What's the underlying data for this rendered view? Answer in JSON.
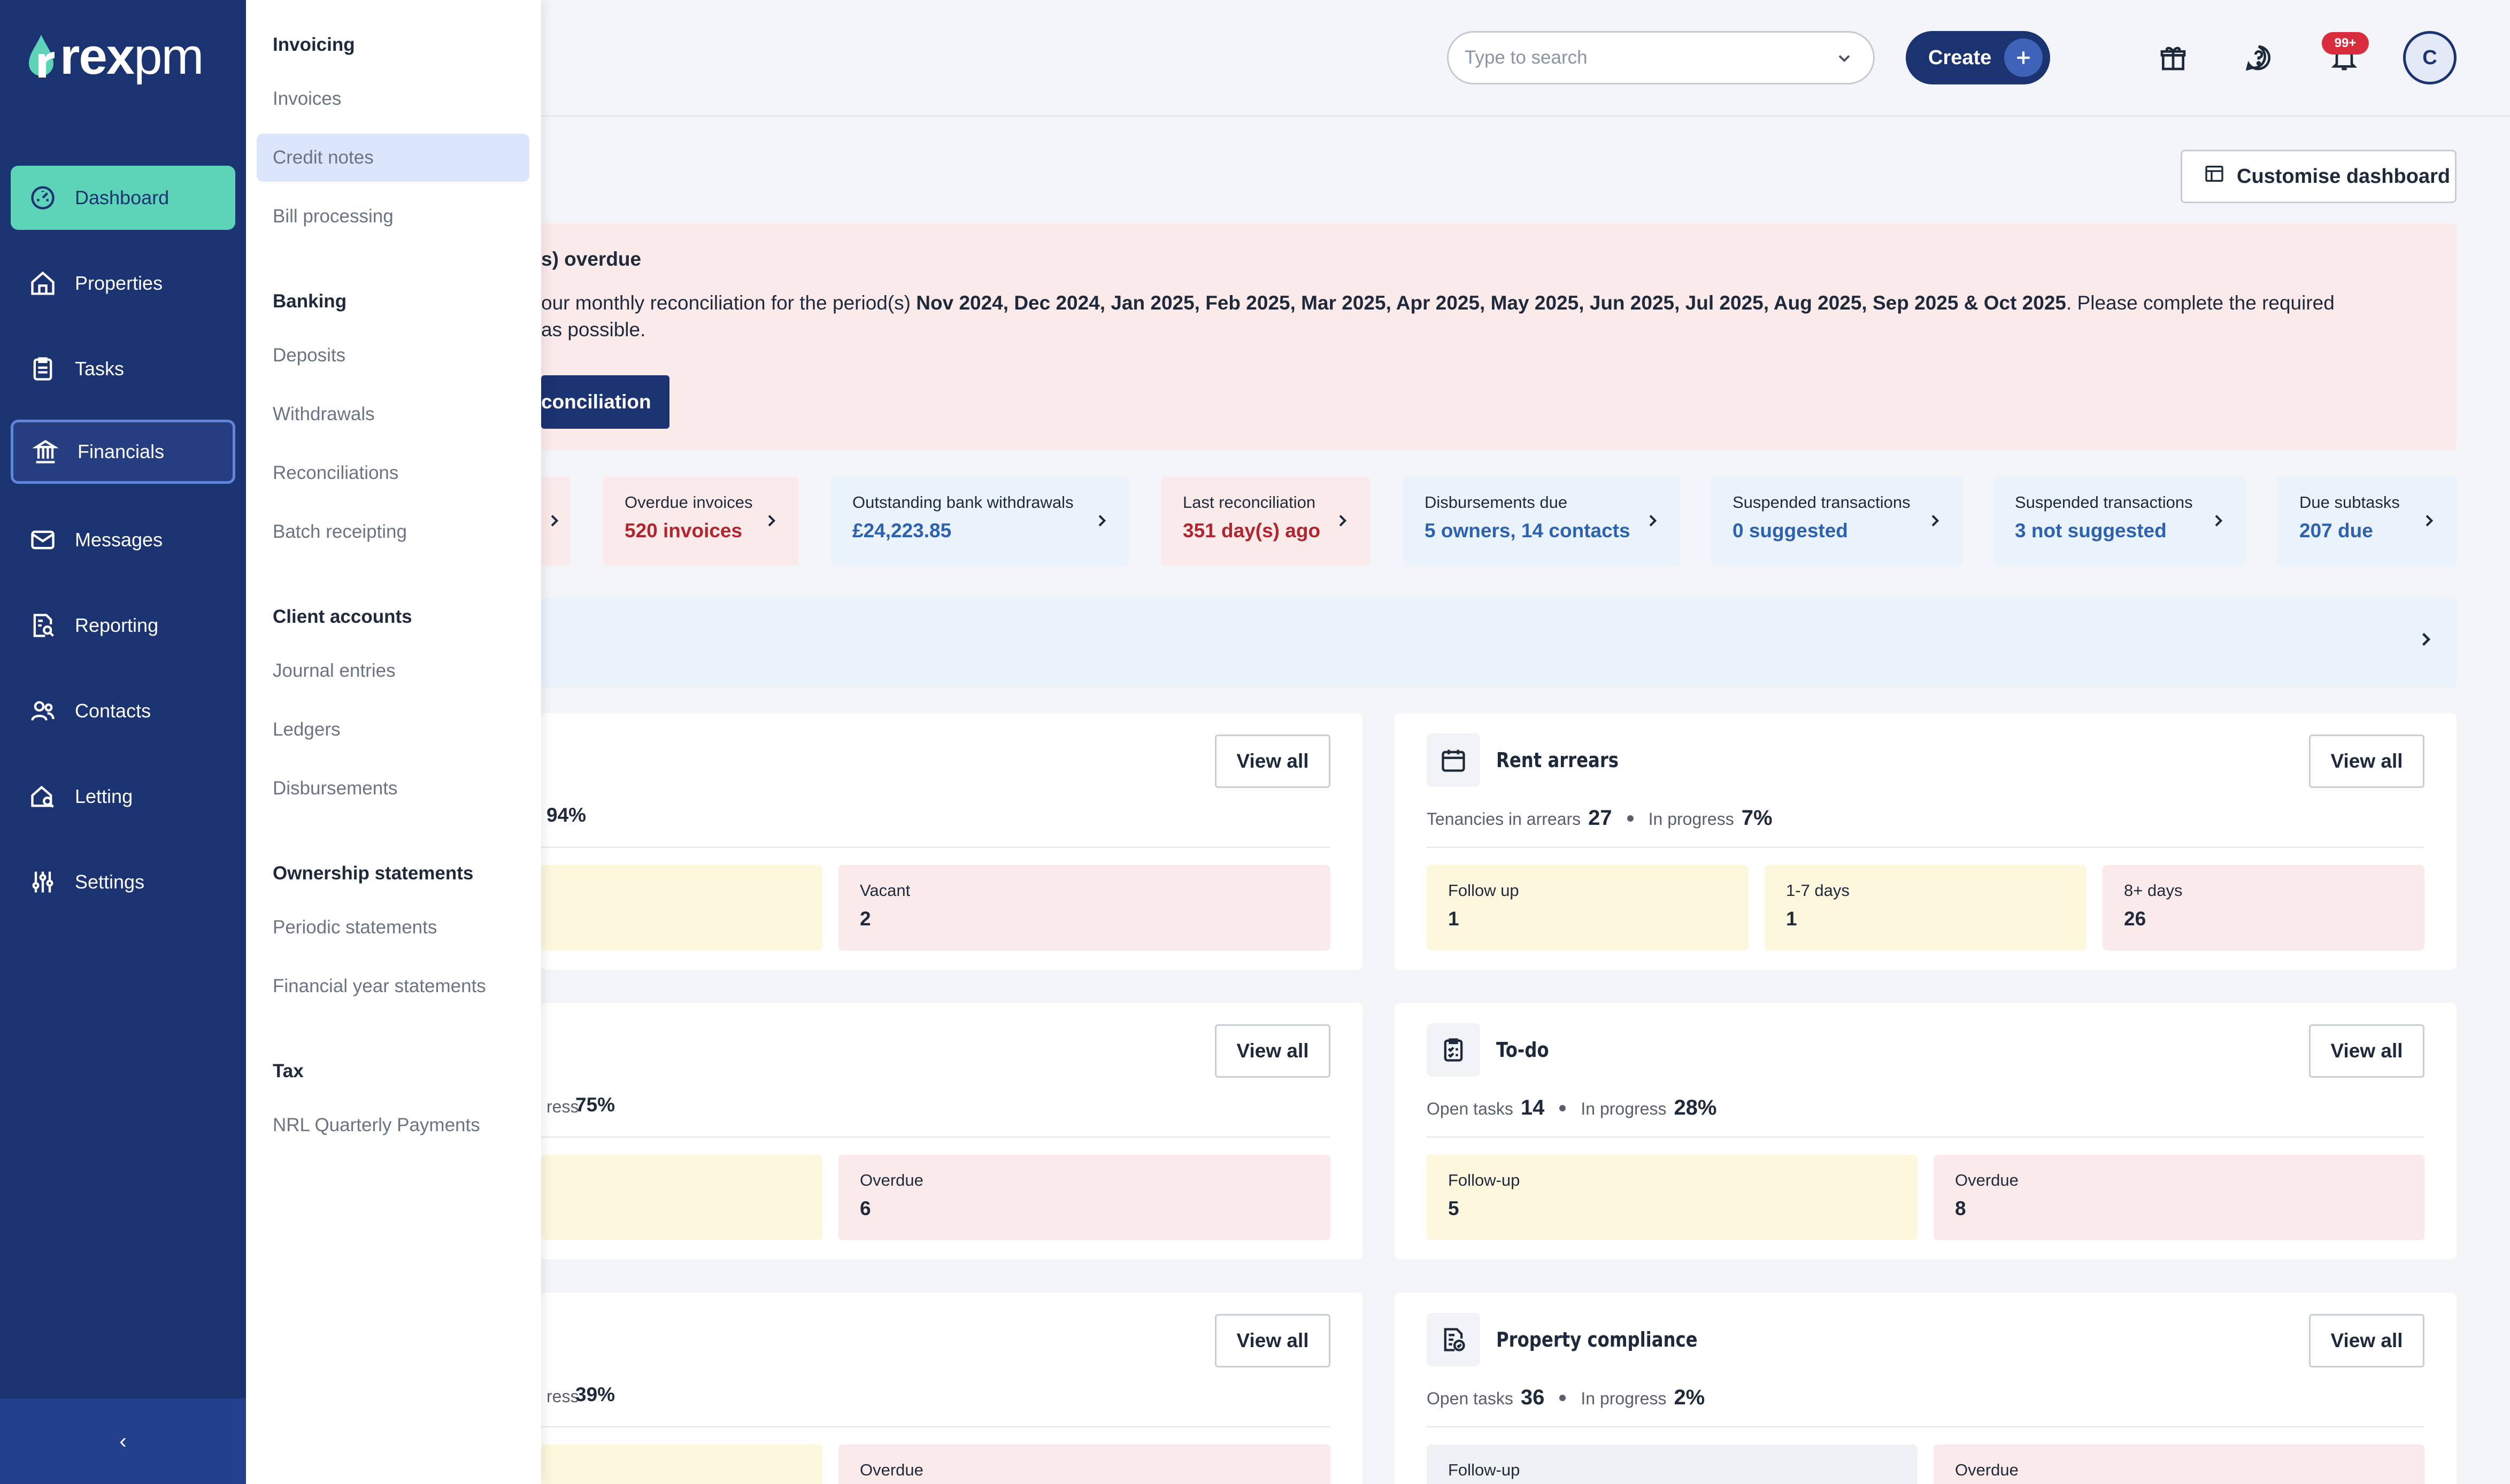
{
  "nav": {
    "logo": {
      "strong": "rex",
      "light": "pm"
    },
    "items": [
      {
        "label": "Dashboard",
        "icon": "dashboard-gauge-icon"
      },
      {
        "label": "Properties",
        "icon": "house-icon"
      },
      {
        "label": "Tasks",
        "icon": "clipboard-icon"
      },
      {
        "label": "Financials",
        "icon": "bank-icon"
      },
      {
        "label": "Messages",
        "icon": "envelope-icon"
      },
      {
        "label": "Reporting",
        "icon": "report-search-icon"
      },
      {
        "label": "Contacts",
        "icon": "people-icon"
      },
      {
        "label": "Letting",
        "icon": "house-key-icon"
      },
      {
        "label": "Settings",
        "icon": "sliders-icon"
      }
    ],
    "collapse_glyph": "‹"
  },
  "flyout": {
    "sections": [
      {
        "heading": "Invoicing",
        "items": [
          "Invoices",
          "Credit notes",
          "Bill processing"
        ]
      },
      {
        "heading": "Banking",
        "items": [
          "Deposits",
          "Withdrawals",
          "Reconciliations",
          "Batch receipting"
        ]
      },
      {
        "heading": "Client accounts",
        "items": [
          "Journal entries",
          "Ledgers",
          "Disbursements"
        ]
      },
      {
        "heading": "Ownership statements",
        "items": [
          "Periodic statements",
          "Financial year statements"
        ]
      },
      {
        "heading": "Tax",
        "items": [
          "NRL Quarterly Payments"
        ]
      }
    ],
    "active_item": "Credit notes"
  },
  "topbar": {
    "search_placeholder": "Type to search",
    "create_label": "Create",
    "notifications_badge": "99+",
    "avatar_initial": "C"
  },
  "customise_label": "Customise dashboard",
  "alert": {
    "title_fragment": "s) overdue",
    "body_prefix": "our monthly reconciliation for the period(s) ",
    "body_periods": "Nov 2024, Dec 2024, Jan 2025, Feb 2025, Mar 2025, Apr 2025, May 2025, Jun 2025, Jul 2025, Aug 2025, Sep 2025 & Oct 2025",
    "body_suffix": ". Please complete the required",
    "body_line2": "as possible.",
    "button_fragment": "conciliation"
  },
  "stats": [
    {
      "label": "Overdue invoices",
      "value": "520 invoices",
      "tone": "red"
    },
    {
      "label": "Outstanding bank withdrawals",
      "value": "£24,223.85",
      "tone": "blue"
    },
    {
      "label": "Last reconciliation",
      "value": "351 day(s) ago",
      "tone": "red"
    },
    {
      "label": "Disbursements due",
      "value": "5 owners, 14 contacts",
      "tone": "blue"
    },
    {
      "label": "Suspended transactions",
      "value": "0 suggested",
      "tone": "blue"
    },
    {
      "label": "Suspended transactions",
      "value": "3 not suggested",
      "tone": "blue"
    },
    {
      "label": "Due subtasks",
      "value": "207 due",
      "tone": "blue"
    }
  ],
  "cards_left": [
    {
      "meta_fragment": "94%",
      "tile_label": "Vacant",
      "tile_value": "2",
      "view_all": "View all"
    },
    {
      "meta_prefix": "ress",
      "meta_fragment": "75%",
      "tile_label": "Overdue",
      "tile_value": "6",
      "view_all": "View all"
    },
    {
      "meta_prefix": "ress",
      "meta_fragment": "39%",
      "tile_label": "Overdue",
      "tile_value": "",
      "view_all": "View all"
    }
  ],
  "cards_right": [
    {
      "title": "Rent arrears",
      "icon": "calendar-icon",
      "meta": {
        "label1": "Tenancies in arrears",
        "value1": "27",
        "label2": "In progress",
        "value2": "7%"
      },
      "tiles": [
        {
          "label": "Follow up",
          "value": "1",
          "tone": "yellow"
        },
        {
          "label": "1-7 days",
          "value": "1",
          "tone": "yellow"
        },
        {
          "label": "8+ days",
          "value": "26",
          "tone": "pink"
        }
      ],
      "view_all": "View all"
    },
    {
      "title": "To-do",
      "icon": "checklist-icon",
      "meta": {
        "label1": "Open tasks",
        "value1": "14",
        "label2": "In progress",
        "value2": "28%"
      },
      "tiles": [
        {
          "label": "Follow-up",
          "value": "5",
          "tone": "yellow"
        },
        {
          "label": "Overdue",
          "value": "8",
          "tone": "pink"
        }
      ],
      "view_all": "View all"
    },
    {
      "title": "Property compliance",
      "icon": "compliance-doc-icon",
      "meta": {
        "label1": "Open tasks",
        "value1": "36",
        "label2": "In progress",
        "value2": "2%"
      },
      "tiles": [
        {
          "label": "Follow-up",
          "value": "",
          "tone": "grey"
        },
        {
          "label": "Overdue",
          "value": "",
          "tone": "pink"
        }
      ],
      "view_all": "View all"
    }
  ]
}
